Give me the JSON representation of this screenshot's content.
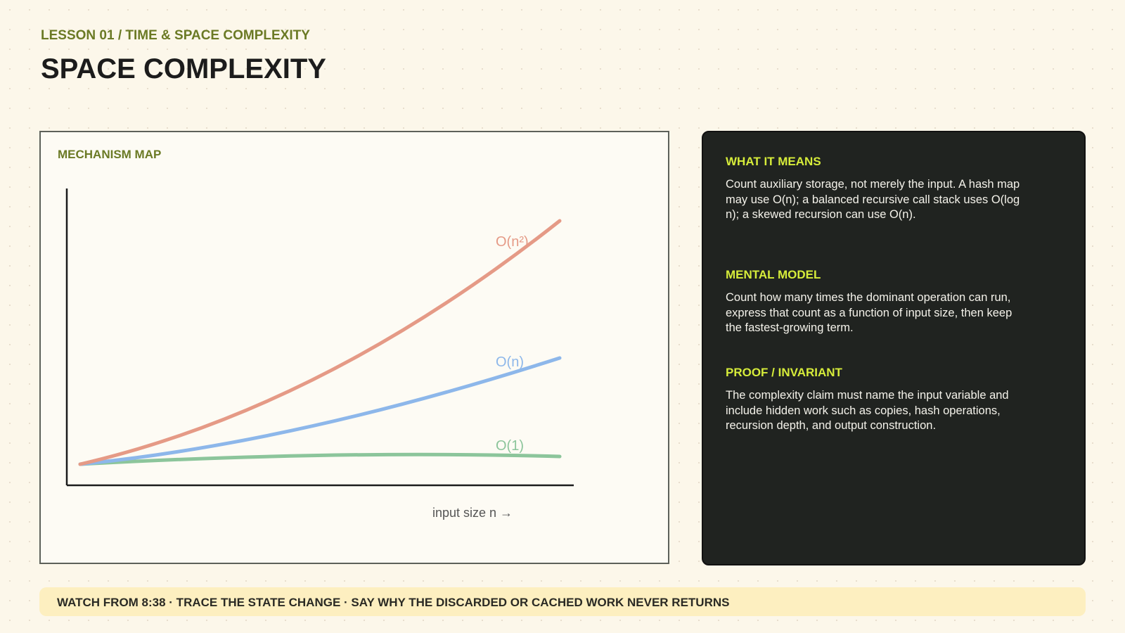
{
  "header": {
    "eyebrow": "LESSON 01 / TIME & SPACE COMPLEXITY",
    "title": "SPACE COMPLEXITY"
  },
  "mechanism_map": {
    "label": "MECHANISM MAP",
    "curves": [
      "O(n²)",
      "O(n)",
      "O(1)"
    ],
    "x_axis_label": "input size n →"
  },
  "notes": [
    {
      "heading": "WHAT IT MEANS",
      "body": "Count auxiliary storage, not merely the input. A hash map may use O(n); a balanced recursive call stack uses O(log n); a skewed recursion can use O(n)."
    },
    {
      "heading": "MENTAL MODEL",
      "body": "Count how many times the dominant operation can run, express that count as a function of input size, then keep the fastest-growing term."
    },
    {
      "heading": "PROOF / INVARIANT",
      "body": "The complexity claim must name the input variable and include hidden work such as copies, hash operations, recursion depth, and output construction."
    }
  ],
  "footer": "WATCH FROM 8:38 · TRACE THE STATE CHANGE · SAY WHY THE DISCARDED OR CACHED WORK NEVER RETURNS"
}
